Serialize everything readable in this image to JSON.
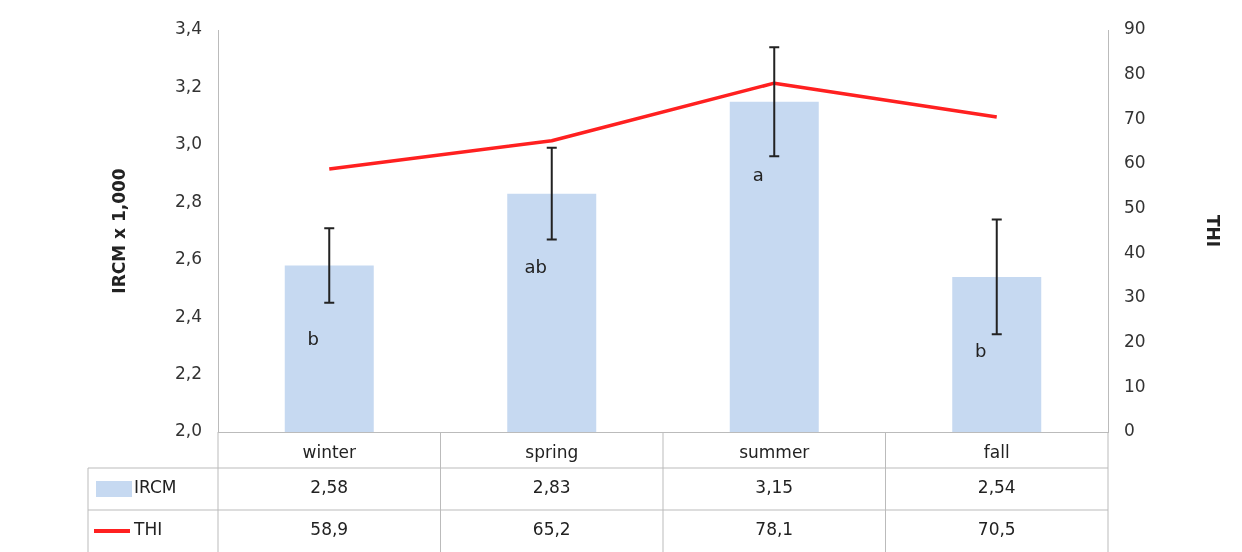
{
  "chart_data": {
    "type": "bar",
    "ylabel": "IRCM x 1,000",
    "y2label": "THI",
    "categories": [
      "winter",
      "spring",
      "summer",
      "fall"
    ],
    "series": [
      {
        "name": "IRCM",
        "color": "#c6d9f1",
        "values": [
          2.58,
          2.83,
          3.15,
          2.54
        ],
        "errors": [
          0.13,
          0.16,
          0.19,
          0.2
        ],
        "value_labels": [
          "2,58",
          "2,83",
          "3,15",
          "2,54"
        ]
      },
      {
        "name": "THI",
        "type": "line",
        "axis": "y2",
        "color": "#ff2020",
        "values": [
          58.9,
          65.2,
          78.1,
          70.5
        ],
        "value_labels": [
          "58,9",
          "65,2",
          "78,1",
          "70,5"
        ]
      }
    ],
    "ylim": [
      2.0,
      3.4
    ],
    "yticks": [
      {
        "value": 2.0,
        "label": "2,0"
      },
      {
        "value": 2.2,
        "label": "2,2"
      },
      {
        "value": 2.4,
        "label": "2,4"
      },
      {
        "value": 2.6,
        "label": "2,6"
      },
      {
        "value": 2.8,
        "label": "2,8"
      },
      {
        "value": 3.0,
        "label": "3,0"
      },
      {
        "value": 3.2,
        "label": "3,2"
      },
      {
        "value": 3.4,
        "label": "3,4"
      }
    ],
    "y2lim": [
      0,
      90
    ],
    "y2ticks": [
      0,
      10,
      20,
      30,
      40,
      50,
      60,
      70,
      80,
      90
    ],
    "annotations": [
      "b",
      "ab",
      "a",
      "b"
    ],
    "legend": "bottom",
    "grid": false,
    "marker": "none",
    "line_style": "solid"
  }
}
